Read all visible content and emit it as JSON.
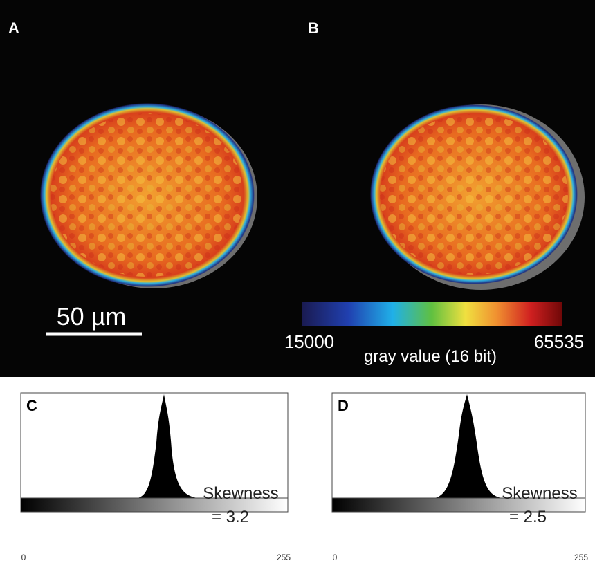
{
  "panels": [
    {
      "label": "A"
    },
    {
      "label": "B"
    }
  ],
  "scale_bar": {
    "label": "50 µm"
  },
  "colorbar": {
    "min_label": 15000,
    "max_label": 65535,
    "title": "gray value (16 bit)"
  },
  "histograms": [
    {
      "label": "C",
      "stat_name": "Skewness",
      "stat_value": "= 3.2",
      "axis_min": 0,
      "axis_max": 255
    },
    {
      "label": "D",
      "stat_name": "Skewness",
      "stat_value": "= 2.5",
      "axis_min": 0,
      "axis_max": 255
    }
  ]
}
